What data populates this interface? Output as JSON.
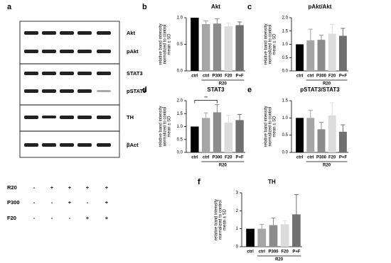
{
  "blot": {
    "letter": "a",
    "bands": [
      "Akt",
      "pAkt",
      "STAT3",
      "pSTAT3",
      "TH",
      "βAct"
    ],
    "treatments": [
      {
        "name": "R20",
        "signs": [
          "-",
          "+",
          "+",
          "+",
          "+"
        ]
      },
      {
        "name": "P300",
        "signs": [
          "-",
          "-",
          "+",
          "-",
          "+"
        ]
      },
      {
        "name": "F20",
        "signs": [
          "-",
          "-",
          "-",
          "+",
          "+"
        ]
      }
    ]
  },
  "chart_data": [
    {
      "type": "bar",
      "letter": "b",
      "title": "Akt",
      "ylabel": [
        "relative band intensity",
        "normalized to control",
        "mean ± SD"
      ],
      "categories": [
        "ctrl",
        "ctrl",
        "P300",
        "F20",
        "P+F"
      ],
      "group_label": "R20",
      "values": [
        1.0,
        0.88,
        0.89,
        0.84,
        0.86
      ],
      "errors": [
        null,
        0.06,
        0.09,
        0.06,
        0.06
      ],
      "colors": [
        "#000000",
        "#a6a6a6",
        "#8c8c8c",
        "#dcdcdc",
        "#707070"
      ],
      "ylim": [
        0,
        1
      ],
      "yticks": [
        {
          "value": 0,
          "label": "0.0"
        },
        {
          "value": 0.5,
          "label": "0.5"
        },
        {
          "value": 1,
          "label": "1.0"
        }
      ]
    },
    {
      "type": "bar",
      "letter": "c",
      "title": "pAkt/Akt",
      "ylabel": [
        "relative band intensity",
        "normalized to control",
        "mean ± SD"
      ],
      "categories": [
        "ctrl",
        "ctrl",
        "P300",
        "F20",
        "P+F"
      ],
      "group_label": "R20",
      "values": [
        1.0,
        1.15,
        1.17,
        1.4,
        1.32
      ],
      "errors": [
        null,
        0.42,
        0.17,
        0.35,
        0.28
      ],
      "colors": [
        "#000000",
        "#a6a6a6",
        "#8c8c8c",
        "#dcdcdc",
        "#707070"
      ],
      "ylim": [
        0,
        2
      ],
      "yticks": [
        {
          "value": 0,
          "label": "0.0"
        },
        {
          "value": 0.5,
          "label": "0.5"
        },
        {
          "value": 1,
          "label": "1.0"
        },
        {
          "value": 1.5,
          "label": "1.5"
        },
        {
          "value": 2,
          "label": "2.0"
        }
      ]
    },
    {
      "type": "bar",
      "letter": "d",
      "title": "STAT3",
      "ylabel": [
        "relative band intensity",
        "normalized to control",
        "mean ± SD"
      ],
      "categories": [
        "ctrl",
        "ctrl",
        "P300",
        "F20",
        "P+F"
      ],
      "group_label": "R20",
      "values": [
        1.0,
        1.33,
        1.55,
        1.15,
        1.25
      ],
      "errors": [
        null,
        0.2,
        0.3,
        0.28,
        0.22
      ],
      "colors": [
        "#000000",
        "#a6a6a6",
        "#8c8c8c",
        "#dcdcdc",
        "#707070"
      ],
      "annotation": "**",
      "ylim": [
        0,
        2
      ],
      "yticks": [
        {
          "value": 0,
          "label": "0.0"
        },
        {
          "value": 0.5,
          "label": "0.5"
        },
        {
          "value": 1,
          "label": "1.0"
        },
        {
          "value": 1.5,
          "label": "1.5"
        },
        {
          "value": 2,
          "label": "2.0"
        }
      ]
    },
    {
      "type": "bar",
      "letter": "e",
      "title": "pSTAT3/STAT3",
      "ylabel": [
        "relative band intensity",
        "normalized to control",
        "mean ± SD"
      ],
      "categories": [
        "ctrl",
        "ctrl",
        "P300",
        "F20",
        "P+F"
      ],
      "group_label": "R20",
      "values": [
        1.0,
        1.0,
        0.67,
        1.07,
        0.6
      ],
      "errors": [
        null,
        0.22,
        0.2,
        0.37,
        0.2
      ],
      "colors": [
        "#000000",
        "#a6a6a6",
        "#8c8c8c",
        "#dcdcdc",
        "#707070"
      ],
      "ylim": [
        0,
        1.5
      ],
      "yticks": [
        {
          "value": 0,
          "label": "0.0"
        },
        {
          "value": 0.5,
          "label": "0.5"
        },
        {
          "value": 1,
          "label": "1.0"
        },
        {
          "value": 1.5,
          "label": "1.5"
        }
      ]
    },
    {
      "type": "bar",
      "letter": "f",
      "title": "TH",
      "ylabel": [
        "relative band intensity",
        "normalized to control",
        "mean ± SD"
      ],
      "categories": [
        "ctrl",
        "ctrl",
        "P300",
        "F20",
        "P+F"
      ],
      "group_label": "R20",
      "values": [
        1.0,
        1.0,
        1.2,
        1.25,
        1.8
      ],
      "errors": [
        null,
        0.25,
        0.4,
        0.2,
        1.1
      ],
      "colors": [
        "#000000",
        "#a6a6a6",
        "#8c8c8c",
        "#dcdcdc",
        "#707070"
      ],
      "ylim": [
        0,
        3
      ],
      "yticks": [
        0,
        1,
        2,
        3
      ]
    }
  ]
}
